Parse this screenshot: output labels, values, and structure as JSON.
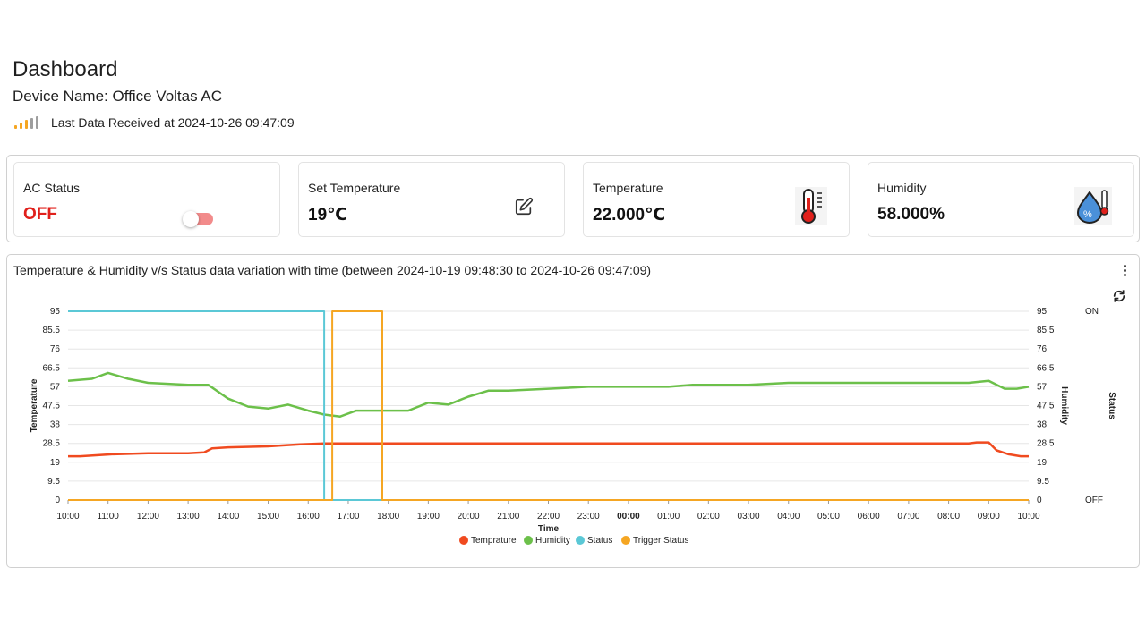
{
  "header": {
    "title": "Dashboard",
    "device_name": "Device Name: Office Voltas AC",
    "last_data": "Last Data Received at 2024-10-26 09:47:09"
  },
  "cards": {
    "ac_status": {
      "label": "AC Status",
      "value": "OFF",
      "toggle_on": false
    },
    "set_temperature": {
      "label": "Set Temperature",
      "value": "19℃"
    },
    "temperature": {
      "label": "Temperature",
      "value": "22.000℃"
    },
    "humidity": {
      "label": "Humidity",
      "value": "58.000%"
    }
  },
  "icons": {
    "signal": "signal-strength-icon",
    "edit": "edit-pencil-icon",
    "thermometer": "thermometer-icon",
    "humidity": "humidity-drop-icon",
    "menu": "more-vertical-icon",
    "refresh": "refresh-icon"
  },
  "colors": {
    "temperature": "#f04a1f",
    "humidity": "#6cc04a",
    "status": "#5bc8d6",
    "trigger": "#f5a623",
    "off_text": "#e0201b"
  },
  "chart_data": {
    "type": "line",
    "title": "Temperature & Humidity v/s Status data variation with time (between 2024-10-19 09:48:30 to 2024-10-26 09:47:09)",
    "xlabel": "Time",
    "ylabel_left": "Temperature",
    "ylabel_right": "Humidity",
    "ylabel_status": "Status",
    "x_ticks": [
      "10:00",
      "11:00",
      "12:00",
      "13:00",
      "14:00",
      "15:00",
      "16:00",
      "17:00",
      "18:00",
      "19:00",
      "20:00",
      "21:00",
      "22:00",
      "23:00",
      "00:00",
      "01:00",
      "02:00",
      "03:00",
      "04:00",
      "05:00",
      "06:00",
      "07:00",
      "08:00",
      "09:00",
      "10:00"
    ],
    "y_ticks": [
      "0",
      "9.5",
      "19",
      "28.5",
      "38",
      "47.5",
      "57",
      "66.5",
      "76",
      "85.5",
      "95"
    ],
    "status_ticks": [
      "OFF",
      "ON"
    ],
    "ylim": [
      0,
      95
    ],
    "xlim_hours": [
      0,
      24
    ],
    "series": [
      {
        "name": "Temprature",
        "points": [
          [
            0,
            22
          ],
          [
            0.3,
            22
          ],
          [
            1.1,
            23
          ],
          [
            2,
            23.5
          ],
          [
            3,
            23.5
          ],
          [
            3.4,
            24
          ],
          [
            3.6,
            26
          ],
          [
            4,
            26.5
          ],
          [
            5,
            27
          ],
          [
            5.8,
            28
          ],
          [
            6.4,
            28.5
          ],
          [
            8,
            28.5
          ],
          [
            14,
            28.5
          ],
          [
            22.5,
            28.5
          ],
          [
            22.7,
            29
          ],
          [
            23,
            29
          ],
          [
            23.2,
            25
          ],
          [
            23.5,
            23
          ],
          [
            23.8,
            22
          ],
          [
            24,
            22
          ]
        ]
      },
      {
        "name": "Humidity",
        "points": [
          [
            0,
            60
          ],
          [
            0.6,
            61
          ],
          [
            1,
            64
          ],
          [
            1.5,
            61
          ],
          [
            2,
            59
          ],
          [
            3,
            58
          ],
          [
            3.5,
            58
          ],
          [
            4,
            51
          ],
          [
            4.5,
            47
          ],
          [
            5,
            46
          ],
          [
            5.5,
            48
          ],
          [
            6,
            45
          ],
          [
            6.4,
            43
          ],
          [
            6.8,
            42
          ],
          [
            7.2,
            45
          ],
          [
            8,
            45
          ],
          [
            8.5,
            45
          ],
          [
            9,
            49
          ],
          [
            9.5,
            48
          ],
          [
            10,
            52
          ],
          [
            10.5,
            55
          ],
          [
            11,
            55
          ],
          [
            12,
            56
          ],
          [
            13,
            57
          ],
          [
            15,
            57
          ],
          [
            15.6,
            58
          ],
          [
            17,
            58
          ],
          [
            18,
            59
          ],
          [
            20,
            59
          ],
          [
            22.5,
            59
          ],
          [
            23,
            60
          ],
          [
            23.4,
            56
          ],
          [
            23.7,
            56
          ],
          [
            24,
            57
          ]
        ]
      },
      {
        "name": "Status",
        "points": [
          [
            0,
            95
          ],
          [
            6.4,
            95
          ],
          [
            6.4,
            0
          ],
          [
            24,
            0
          ]
        ]
      },
      {
        "name": "Trigger Status",
        "points": [
          [
            0,
            0
          ],
          [
            6.6,
            0
          ],
          [
            6.6,
            95
          ],
          [
            7.85,
            95
          ],
          [
            7.85,
            0
          ],
          [
            24,
            0
          ]
        ]
      }
    ],
    "grid": true,
    "legend": "bottom"
  }
}
